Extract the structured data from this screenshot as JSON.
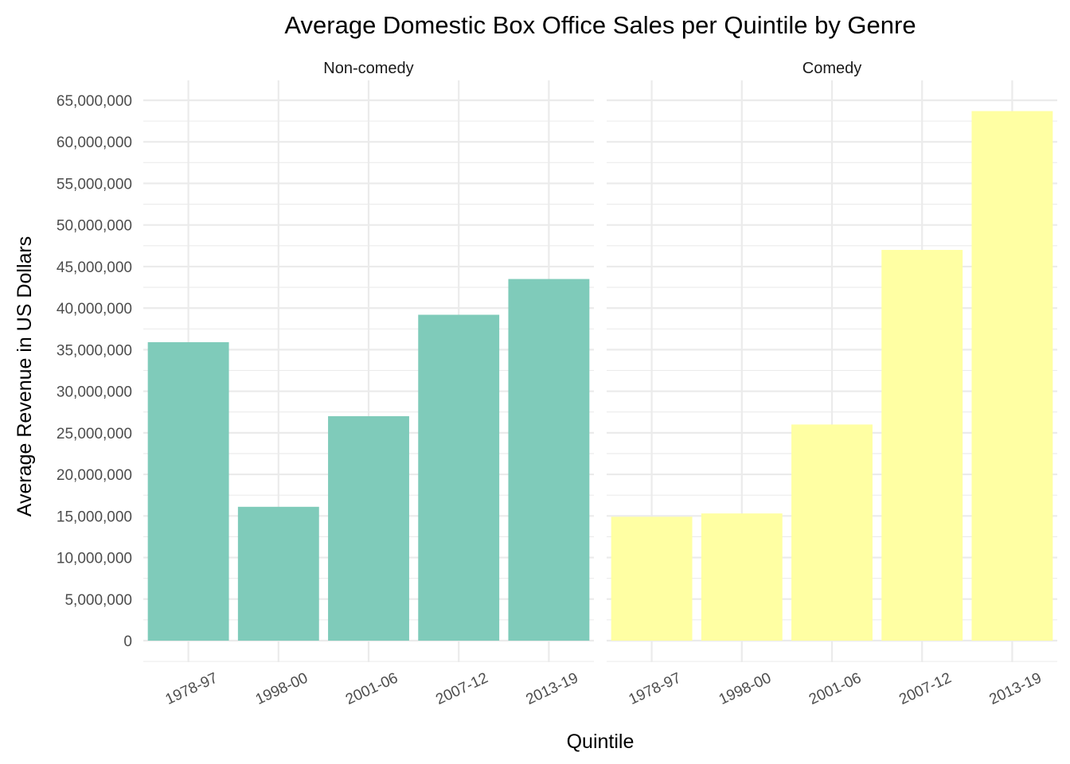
{
  "chart_data": {
    "type": "bar",
    "title": "Average Domestic Box Office Sales per Quintile by Genre",
    "xlabel": "Quintile",
    "ylabel": "Average Revenue in US Dollars",
    "categories": [
      "1978-97",
      "1998-00",
      "2001-06",
      "2007-12",
      "2013-19"
    ],
    "ylim": [
      0,
      65000000
    ],
    "y_ticks": [
      0,
      5000000,
      10000000,
      15000000,
      20000000,
      25000000,
      30000000,
      35000000,
      40000000,
      45000000,
      50000000,
      55000000,
      60000000,
      65000000
    ],
    "y_tick_labels": [
      "0",
      "5,000,000",
      "10,000,000",
      "15,000,000",
      "20,000,000",
      "25,000,000",
      "30,000,000",
      "35,000,000",
      "40,000,000",
      "45,000,000",
      "50,000,000",
      "55,000,000",
      "60,000,000",
      "65,000,000"
    ],
    "grid": true,
    "legend": "none",
    "facets": [
      {
        "label": "Non-comedy",
        "color": "#7FCBBA",
        "values": [
          35900000,
          16100000,
          27000000,
          39200000,
          43500000
        ]
      },
      {
        "label": "Comedy",
        "color": "#FFFFA3",
        "values": [
          14900000,
          15300000,
          26000000,
          47000000,
          63700000
        ]
      }
    ]
  }
}
